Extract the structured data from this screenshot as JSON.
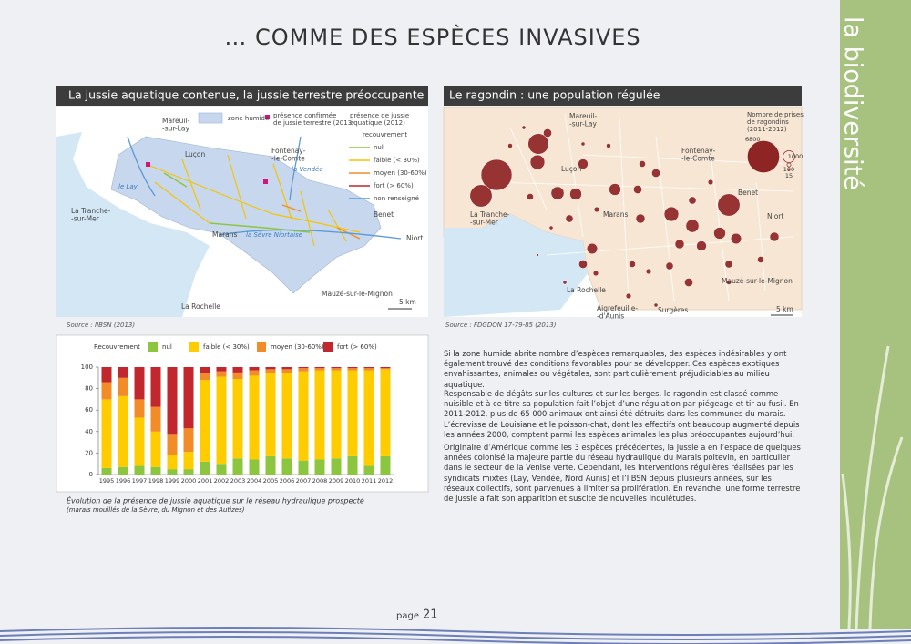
{
  "title": "… COMME DES ESPÈCES INVASIVES",
  "sidebar": "la biodiversité",
  "page": {
    "label": "page",
    "number": "21"
  },
  "jussie": {
    "header": "La jussie aquatique contenue, la jussie terrestre préoccupante",
    "source": "Source : IIBSN (2013)",
    "legend": {
      "zone": "zone humide",
      "terrestre": [
        "présence confirmée",
        "de jussie terrestre (2013)"
      ],
      "aquatique": [
        "présence de jussie",
        "aquatique (2012)"
      ],
      "recouvrement": "recouvrement",
      "classes": [
        "nul",
        "faible (< 30%)",
        "moyen (30-60%)",
        "fort (> 60%)",
        "non renseigné"
      ]
    },
    "places": [
      [
        "Mareuil-",
        "-sur-Lay"
      ],
      [
        "Luçon"
      ],
      [
        "Fontenay-",
        "-le-Comte"
      ],
      [
        "La Tranche-",
        "-sur-Mer"
      ],
      [
        "Marans"
      ],
      [
        "Benet"
      ],
      [
        "Niort"
      ],
      [
        "Mauzé-sur-le-Mignon"
      ],
      [
        "La Rochelle"
      ],
      [
        "le Lay"
      ],
      [
        "la Vendée"
      ],
      [
        "la Sèvre Niortaise"
      ],
      [
        "5 km"
      ]
    ]
  },
  "ragondin": {
    "header": "Le ragondin : une population régulée",
    "source": "Source : FDGDON 17-79-85 (2013)",
    "legend_title": [
      "Nombre de prises",
      "de ragondins",
      "(2011-2012)"
    ],
    "legend_values": [
      6800,
      1000,
      100,
      15
    ],
    "places": [
      [
        "Mareuil-",
        "-sur-Lay"
      ],
      [
        "Fontenay-",
        "-le-Comte"
      ],
      [
        "Luçon"
      ],
      [
        "Benet"
      ],
      [
        "Niort"
      ],
      [
        "La Tranche-",
        "-sur-Mer"
      ],
      [
        "Marans"
      ],
      [
        "Mauzé-sur-le-Mignon"
      ],
      [
        "La Rochelle"
      ],
      [
        "Aigrefeuille-",
        "-d'Aunis"
      ],
      [
        "Surgères"
      ],
      [
        "5 km"
      ]
    ],
    "bubbles": [
      3000,
      6800,
      3500,
      1500,
      1200,
      1000,
      500,
      700,
      1000,
      500,
      500,
      1500,
      1200,
      3500,
      1000,
      800,
      700,
      600,
      400,
      600,
      800,
      500,
      200,
      300,
      200,
      400,
      500,
      400,
      300,
      600,
      300,
      150,
      100,
      400,
      300,
      150,
      100,
      200,
      200,
      150,
      200,
      100,
      100,
      100,
      50
    ]
  },
  "chart": {
    "type": "bar",
    "stacked": true,
    "legend_title": "Recouvrement",
    "categories": [
      "1995",
      "1996",
      "1997",
      "1998",
      "1999",
      "2000",
      "2001",
      "2002",
      "2003",
      "2004",
      "2005",
      "2006",
      "2007",
      "2008",
      "2009",
      "2010",
      "2011",
      "2012"
    ],
    "series": [
      {
        "name": "nul",
        "color": "#8cc63f",
        "values": [
          6,
          7,
          8,
          7,
          5,
          5,
          12,
          10,
          15,
          14,
          17,
          15,
          13,
          14,
          15,
          17,
          8,
          17
        ]
      },
      {
        "name": "faible (< 30%)",
        "color": "#ffcc00",
        "values": [
          64,
          66,
          45,
          33,
          13,
          16,
          76,
          81,
          74,
          78,
          77,
          79,
          83,
          83,
          82,
          80,
          89,
          81
        ]
      },
      {
        "name": "moyen (30-60%)",
        "color": "#f28c28",
        "values": [
          16,
          17,
          17,
          23,
          19,
          22,
          6,
          5,
          6,
          5,
          4,
          4,
          3,
          2,
          2,
          2,
          2,
          1
        ]
      },
      {
        "name": "fort (> 60%)",
        "color": "#c1272d",
        "values": [
          14,
          10,
          30,
          37,
          63,
          57,
          6,
          4,
          5,
          3,
          2,
          2,
          1,
          1,
          1,
          1,
          1,
          1
        ]
      }
    ],
    "ylim": [
      0,
      100
    ],
    "yticks": [
      0,
      20,
      40,
      60,
      80,
      100
    ],
    "caption": "Évolution de la présence de jussie aquatique sur le réseau hydraulique prospecté",
    "subcaption": "(marais mouillés de la Sèvre, du Mignon et des Autizes)"
  },
  "paragraphs": [
    "Si la zone humide abrite nombre d’espèces remarquables, des espèces indésirables y ont également trouvé des conditions favorables pour se développer. Ces espèces exotiques envahissantes, animales ou végétales, sont particulièrement préjudiciables au milieu aquatique.",
    "Responsable de dégâts sur les cultures et sur les berges, le ragondin est classé comme nuisible et à ce titre sa population fait l’objet d’une régulation par piégeage et tir au fusil. En 2011-2012, plus de 65 000 animaux ont ainsi été détruits dans les communes du marais. L’écrevisse de Louisiane et le poisson-chat, dont les effectifs ont beaucoup augmenté depuis les années 2000, comptent parmi les espèces animales les plus préoccupantes aujourd’hui.",
    "Originaire d’Amérique comme les 3 espèces précédentes, la jussie a en l’espace de quelques années colonisé la majeure partie du réseau hydraulique du Marais poitevin, en particulier dans le secteur de la Venise verte. Cependant, les interventions régulières réalisées par les syndicats mixtes (Lay, Vendée, Nord Aunis) et l’IIBSN depuis plusieurs années, sur les réseaux collectifs, sont parvenues à limiter sa prolifération. En revanche, une forme terrestre de jussie a fait son apparition et suscite de nouvelles inquiétudes."
  ]
}
